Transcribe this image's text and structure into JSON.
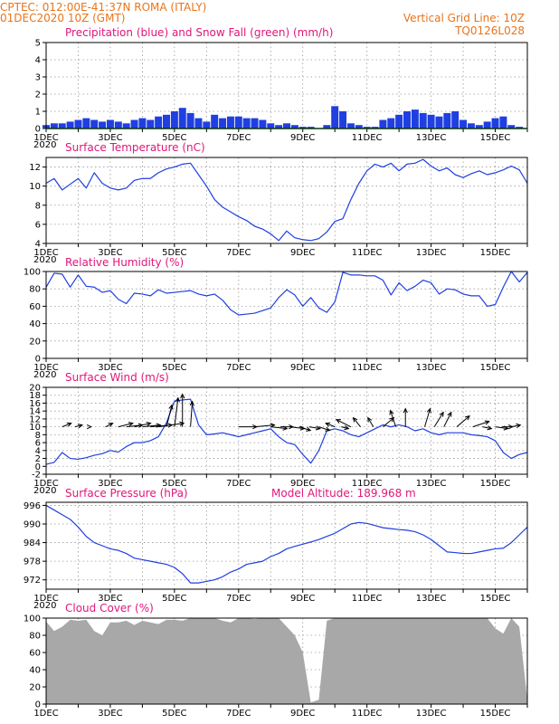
{
  "header": {
    "line1_left": "CPTEC:    012:00E-41:37N    ROMA (ITALY)",
    "line2_left": "01DEC2020 10Z (GMT)",
    "line2_right": "Vertical Grid Line: 10Z",
    "line3_right": "TQ0126L028"
  },
  "colors": {
    "header": "#e8741c",
    "panel_title": "#e0167a",
    "series_blue": "#1f3fe0",
    "snow_green": "#1aa02a",
    "cloud_gray": "#a8a8a8"
  },
  "x_axis": {
    "labels": [
      "1DEC",
      "3DEC",
      "5DEC",
      "7DEC",
      "9DEC",
      "11DEC",
      "13DEC",
      "15DEC"
    ],
    "cut_label": "2020",
    "range_days": [
      1,
      16
    ]
  },
  "chart_data": [
    {
      "id": "precip",
      "type": "bar",
      "title": "Precipitation (blue) and Snow Fall (green) (mm/h)",
      "ylim": [
        0,
        5
      ],
      "yticks": [
        0,
        1,
        2,
        3,
        4,
        5
      ],
      "series": [
        {
          "name": "Precipitation",
          "color": "#1f3fe0",
          "x": [
            1.0,
            1.25,
            1.5,
            1.75,
            2.0,
            2.25,
            2.5,
            2.75,
            3.0,
            3.25,
            3.5,
            3.75,
            4.0,
            4.25,
            4.5,
            4.75,
            5.0,
            5.25,
            5.5,
            5.75,
            6.0,
            6.25,
            6.5,
            6.75,
            7.0,
            7.25,
            7.5,
            7.75,
            8.0,
            8.25,
            8.5,
            8.75,
            9.0,
            9.25,
            9.5,
            9.75,
            10.0,
            10.25,
            10.5,
            10.75,
            11.0,
            11.25,
            11.5,
            11.75,
            12.0,
            12.25,
            12.5,
            12.75,
            13.0,
            13.25,
            13.5,
            13.75,
            14.0,
            14.25,
            14.5,
            14.75,
            15.0,
            15.25,
            15.5,
            15.75,
            16.0
          ],
          "values": [
            0.2,
            0.3,
            0.3,
            0.4,
            0.5,
            0.6,
            0.5,
            0.4,
            0.5,
            0.4,
            0.3,
            0.5,
            0.6,
            0.5,
            0.7,
            0.8,
            1.0,
            1.2,
            0.9,
            0.6,
            0.4,
            0.8,
            0.6,
            0.7,
            0.7,
            0.6,
            0.6,
            0.5,
            0.3,
            0.2,
            0.3,
            0.2,
            0.1,
            0.1,
            0.0,
            0.2,
            1.3,
            1.0,
            0.3,
            0.2,
            0.1,
            0.1,
            0.5,
            0.6,
            0.8,
            1.0,
            1.1,
            0.9,
            0.8,
            0.7,
            0.9,
            1.0,
            0.5,
            0.3,
            0.2,
            0.4,
            0.6,
            0.7,
            0.2,
            0.1,
            0.0
          ]
        },
        {
          "name": "Snow Fall",
          "color": "#1aa02a",
          "x": [
            1.0,
            16.0
          ],
          "values": [
            0.0,
            0.0
          ]
        }
      ]
    },
    {
      "id": "temp",
      "type": "line",
      "title": "Surface Temperature (nC)",
      "ylim": [
        4,
        13
      ],
      "yticks": [
        4,
        6,
        8,
        10,
        12
      ],
      "series": [
        {
          "x": [
            1.0,
            1.25,
            1.5,
            1.75,
            2.0,
            2.25,
            2.5,
            2.75,
            3.0,
            3.25,
            3.5,
            3.75,
            4.0,
            4.25,
            4.5,
            4.75,
            5.0,
            5.25,
            5.5,
            5.75,
            6.0,
            6.25,
            6.5,
            6.75,
            7.0,
            7.25,
            7.5,
            7.75,
            8.0,
            8.25,
            8.5,
            8.75,
            9.0,
            9.25,
            9.5,
            9.75,
            10.0,
            10.25,
            10.5,
            10.75,
            11.0,
            11.25,
            11.5,
            11.75,
            12.0,
            12.25,
            12.5,
            12.75,
            13.0,
            13.25,
            13.5,
            13.75,
            14.0,
            14.25,
            14.5,
            14.75,
            15.0,
            15.25,
            15.5,
            15.75,
            16.0
          ],
          "values": [
            10.3,
            10.8,
            9.6,
            10.2,
            10.8,
            9.8,
            11.4,
            10.3,
            9.8,
            9.6,
            9.8,
            10.6,
            10.8,
            10.8,
            11.4,
            11.8,
            12.0,
            12.3,
            12.4,
            11.2,
            10.0,
            8.6,
            7.8,
            7.3,
            6.8,
            6.4,
            5.8,
            5.5,
            5.0,
            4.3,
            5.3,
            4.6,
            4.4,
            4.3,
            4.5,
            5.2,
            6.3,
            6.6,
            8.6,
            10.3,
            11.6,
            12.3,
            12.0,
            12.4,
            11.6,
            12.3,
            12.4,
            12.8,
            12.1,
            11.6,
            11.9,
            11.2,
            10.9,
            11.3,
            11.6,
            11.2,
            11.4,
            11.7,
            12.1,
            11.7,
            10.3
          ]
        }
      ]
    },
    {
      "id": "rh",
      "type": "line",
      "title": "Relative Humidity (%)",
      "ylim": [
        0,
        100
      ],
      "yticks": [
        0,
        20,
        40,
        60,
        80,
        100
      ],
      "series": [
        {
          "x": [
            1.0,
            1.25,
            1.5,
            1.75,
            2.0,
            2.25,
            2.5,
            2.75,
            3.0,
            3.25,
            3.5,
            3.75,
            4.0,
            4.25,
            4.5,
            4.75,
            5.0,
            5.25,
            5.5,
            5.75,
            6.0,
            6.25,
            6.5,
            6.75,
            7.0,
            7.25,
            7.5,
            7.75,
            8.0,
            8.25,
            8.5,
            8.75,
            9.0,
            9.25,
            9.5,
            9.75,
            10.0,
            10.25,
            10.5,
            10.75,
            11.0,
            11.25,
            11.5,
            11.75,
            12.0,
            12.25,
            12.5,
            12.75,
            13.0,
            13.25,
            13.5,
            13.75,
            14.0,
            14.25,
            14.5,
            14.75,
            15.0,
            15.25,
            15.5,
            15.75,
            16.0
          ],
          "values": [
            82,
            98,
            97,
            82,
            96,
            83,
            82,
            76,
            78,
            68,
            63,
            75,
            74,
            72,
            79,
            75,
            76,
            77,
            78,
            74,
            72,
            74,
            67,
            56,
            50,
            51,
            52,
            55,
            58,
            70,
            79,
            73,
            60,
            70,
            58,
            53,
            65,
            99,
            96,
            96,
            95,
            95,
            90,
            73,
            87,
            78,
            83,
            90,
            87,
            74,
            80,
            79,
            74,
            72,
            72,
            60,
            62,
            82,
            100,
            88,
            99
          ]
        }
      ]
    },
    {
      "id": "wind",
      "type": "line",
      "title": "Surface Wind (m/s)",
      "ylim": [
        -2,
        20
      ],
      "yticks": [
        -2,
        0,
        2,
        4,
        6,
        8,
        10,
        12,
        14,
        16,
        18,
        20
      ],
      "series": [
        {
          "x": [
            1.0,
            1.25,
            1.5,
            1.75,
            2.0,
            2.25,
            2.5,
            2.75,
            3.0,
            3.25,
            3.5,
            3.75,
            4.0,
            4.25,
            4.5,
            4.75,
            5.0,
            5.25,
            5.5,
            5.75,
            6.0,
            6.25,
            6.5,
            6.75,
            7.0,
            7.25,
            7.5,
            7.75,
            8.0,
            8.25,
            8.5,
            8.75,
            9.0,
            9.25,
            9.5,
            9.75,
            10.0,
            10.25,
            10.5,
            10.75,
            11.0,
            11.25,
            11.5,
            11.75,
            12.0,
            12.25,
            12.5,
            12.75,
            13.0,
            13.25,
            13.5,
            13.75,
            14.0,
            14.25,
            14.5,
            14.75,
            15.0,
            15.25,
            15.5,
            15.75,
            16.0
          ],
          "values": [
            0.5,
            1.0,
            3.5,
            2.0,
            1.8,
            2.2,
            2.8,
            3.2,
            4.0,
            3.6,
            5.0,
            6.0,
            6.0,
            6.5,
            7.5,
            11.0,
            16.5,
            16.8,
            17.0,
            10.5,
            8.0,
            8.2,
            8.5,
            8.0,
            7.5,
            8.0,
            8.5,
            9.0,
            9.5,
            7.5,
            6.0,
            5.5,
            3.0,
            0.8,
            4.0,
            9.0,
            9.5,
            9.0,
            8.0,
            7.5,
            8.5,
            9.5,
            10.5,
            10.0,
            10.5,
            10.0,
            9.0,
            9.5,
            8.5,
            8.0,
            8.5,
            8.5,
            8.5,
            8.0,
            7.8,
            7.5,
            6.5,
            3.5,
            2.0,
            3.0,
            3.5
          ]
        }
      ],
      "arrows": {
        "note": "wind direction vectors; u/v in m/s (east/north components)",
        "x": [
          1.5,
          1.9,
          2.4,
          2.85,
          3.25,
          3.5,
          3.75,
          4.0,
          4.25,
          4.5,
          4.75,
          5.0,
          5.25,
          5.5,
          7.0,
          7.5,
          8.0,
          8.3,
          8.6,
          8.9,
          9.2,
          9.5,
          10.0,
          10.2,
          10.5,
          10.8,
          11.2,
          11.5,
          11.9,
          12.2,
          12.8,
          13.1,
          13.4,
          13.8,
          14.3,
          14.6,
          15.0,
          15.2,
          15.5
        ],
        "u": [
          5,
          4,
          0,
          4,
          8,
          9,
          9,
          10,
          12,
          14,
          3,
          2,
          0,
          1,
          10,
          11,
          9,
          7,
          8,
          6,
          6,
          6,
          -5,
          4,
          -8,
          -4,
          -3,
          6,
          -3,
          0,
          3,
          5,
          4,
          7,
          9,
          5,
          7,
          6,
          5
        ],
        "v": [
          2,
          1,
          0,
          2,
          2,
          1,
          2,
          1,
          1,
          2,
          12,
          16,
          18,
          14,
          0,
          1,
          -1,
          0,
          -1,
          -2,
          -1,
          -2,
          2,
          -1,
          4,
          5,
          5,
          5,
          9,
          10,
          10,
          8,
          8,
          6,
          3,
          -1,
          -1,
          0,
          1
        ]
      }
    },
    {
      "id": "pressure",
      "type": "line",
      "title": "Surface Pressure (hPa)",
      "subtitle": "Model Altitude: 189.968 m",
      "ylim": [
        969,
        997
      ],
      "yticks": [
        972,
        978,
        984,
        990,
        996
      ],
      "series": [
        {
          "x": [
            1.0,
            1.25,
            1.5,
            1.75,
            2.0,
            2.25,
            2.5,
            2.75,
            3.0,
            3.25,
            3.5,
            3.75,
            4.0,
            4.25,
            4.5,
            4.75,
            5.0,
            5.25,
            5.5,
            5.75,
            6.0,
            6.25,
            6.5,
            6.75,
            7.0,
            7.25,
            7.5,
            7.75,
            8.0,
            8.25,
            8.5,
            8.75,
            9.0,
            9.25,
            9.5,
            9.75,
            10.0,
            10.25,
            10.5,
            10.75,
            11.0,
            11.25,
            11.5,
            11.75,
            12.0,
            12.25,
            12.5,
            12.75,
            13.0,
            13.25,
            13.5,
            13.75,
            14.0,
            14.25,
            14.5,
            14.75,
            15.0,
            15.25,
            15.5,
            15.75,
            16.0
          ],
          "values": [
            996,
            994.5,
            993,
            991.5,
            989,
            986,
            984,
            983,
            982,
            981.5,
            980.5,
            979,
            978.5,
            978,
            977.5,
            977,
            976,
            974,
            971,
            971,
            971.5,
            972,
            973,
            974.5,
            975.5,
            977,
            977.5,
            978,
            979.5,
            980.5,
            982,
            982.8,
            983.5,
            984.2,
            985,
            986,
            987,
            988.5,
            990,
            990.5,
            990.2,
            989.5,
            988.8,
            988.5,
            988.2,
            988,
            987.5,
            986.5,
            985,
            983,
            981,
            980.8,
            980.5,
            980.5,
            981,
            981.5,
            982,
            982.2,
            984,
            986.5,
            989
          ]
        }
      ]
    },
    {
      "id": "cloud",
      "type": "area",
      "title": "Cloud Cover (%)",
      "ylim": [
        0,
        100
      ],
      "yticks": [
        0,
        20,
        40,
        60,
        80,
        100
      ],
      "series": [
        {
          "color": "#a8a8a8",
          "x": [
            1.0,
            1.25,
            1.5,
            1.75,
            2.0,
            2.25,
            2.5,
            2.75,
            3.0,
            3.25,
            3.5,
            3.75,
            4.0,
            4.25,
            4.5,
            4.75,
            5.0,
            5.25,
            5.5,
            5.75,
            6.0,
            6.25,
            6.5,
            6.75,
            7.0,
            7.25,
            7.5,
            7.75,
            8.0,
            8.25,
            8.5,
            8.75,
            9.0,
            9.25,
            9.5,
            9.75,
            10.0,
            10.25,
            10.5,
            10.75,
            11.0,
            11.25,
            11.5,
            11.75,
            12.0,
            12.25,
            12.5,
            12.75,
            13.0,
            13.25,
            13.5,
            13.75,
            14.0,
            14.25,
            14.5,
            14.75,
            15.0,
            15.25,
            15.5,
            15.75,
            16.0
          ],
          "values": [
            96,
            85,
            90,
            98,
            97,
            98,
            85,
            80,
            95,
            95,
            97,
            92,
            97,
            95,
            93,
            98,
            98,
            97,
            100,
            100,
            100,
            100,
            97,
            95,
            100,
            100,
            99,
            100,
            100,
            100,
            90,
            80,
            60,
            2,
            5,
            97,
            100,
            100,
            100,
            100,
            100,
            100,
            100,
            100,
            100,
            100,
            100,
            100,
            100,
            100,
            100,
            100,
            100,
            100,
            100,
            100,
            88,
            82,
            100,
            90,
            5
          ]
        }
      ]
    }
  ]
}
